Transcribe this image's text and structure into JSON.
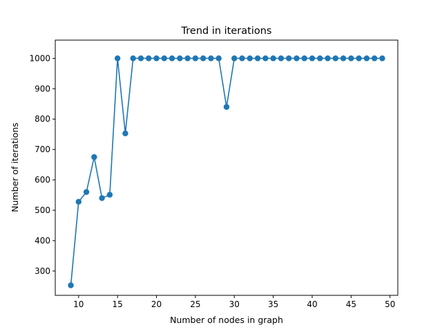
{
  "chart_data": {
    "type": "line",
    "title": "Trend in iterations",
    "xlabel": "Number of nodes in graph",
    "ylabel": "Number of iterations",
    "xlim": [
      7,
      51
    ],
    "ylim": [
      220,
      1060
    ],
    "xticks": [
      10,
      15,
      20,
      25,
      30,
      35,
      40,
      45,
      50
    ],
    "yticks": [
      300,
      400,
      500,
      600,
      700,
      800,
      900,
      1000
    ],
    "grid": false,
    "series": [
      {
        "color": "#1f77b4",
        "marker": "circle",
        "x": [
          9,
          10,
          11,
          12,
          13,
          14,
          15,
          16,
          17,
          18,
          19,
          20,
          21,
          22,
          23,
          24,
          25,
          26,
          27,
          28,
          29,
          30,
          31,
          32,
          33,
          34,
          35,
          36,
          37,
          38,
          39,
          40,
          41,
          42,
          43,
          44,
          45,
          46,
          47,
          48,
          49
        ],
        "y": [
          253,
          528,
          560,
          675,
          540,
          551,
          1000,
          753,
          1000,
          1000,
          1000,
          1000,
          1000,
          1000,
          1000,
          1000,
          1000,
          1000,
          1000,
          1000,
          840,
          1000,
          1000,
          1000,
          1000,
          1000,
          1000,
          1000,
          1000,
          1000,
          1000,
          1000,
          1000,
          1000,
          1000,
          1000,
          1000,
          1000,
          1000,
          1000,
          1000
        ]
      }
    ]
  }
}
